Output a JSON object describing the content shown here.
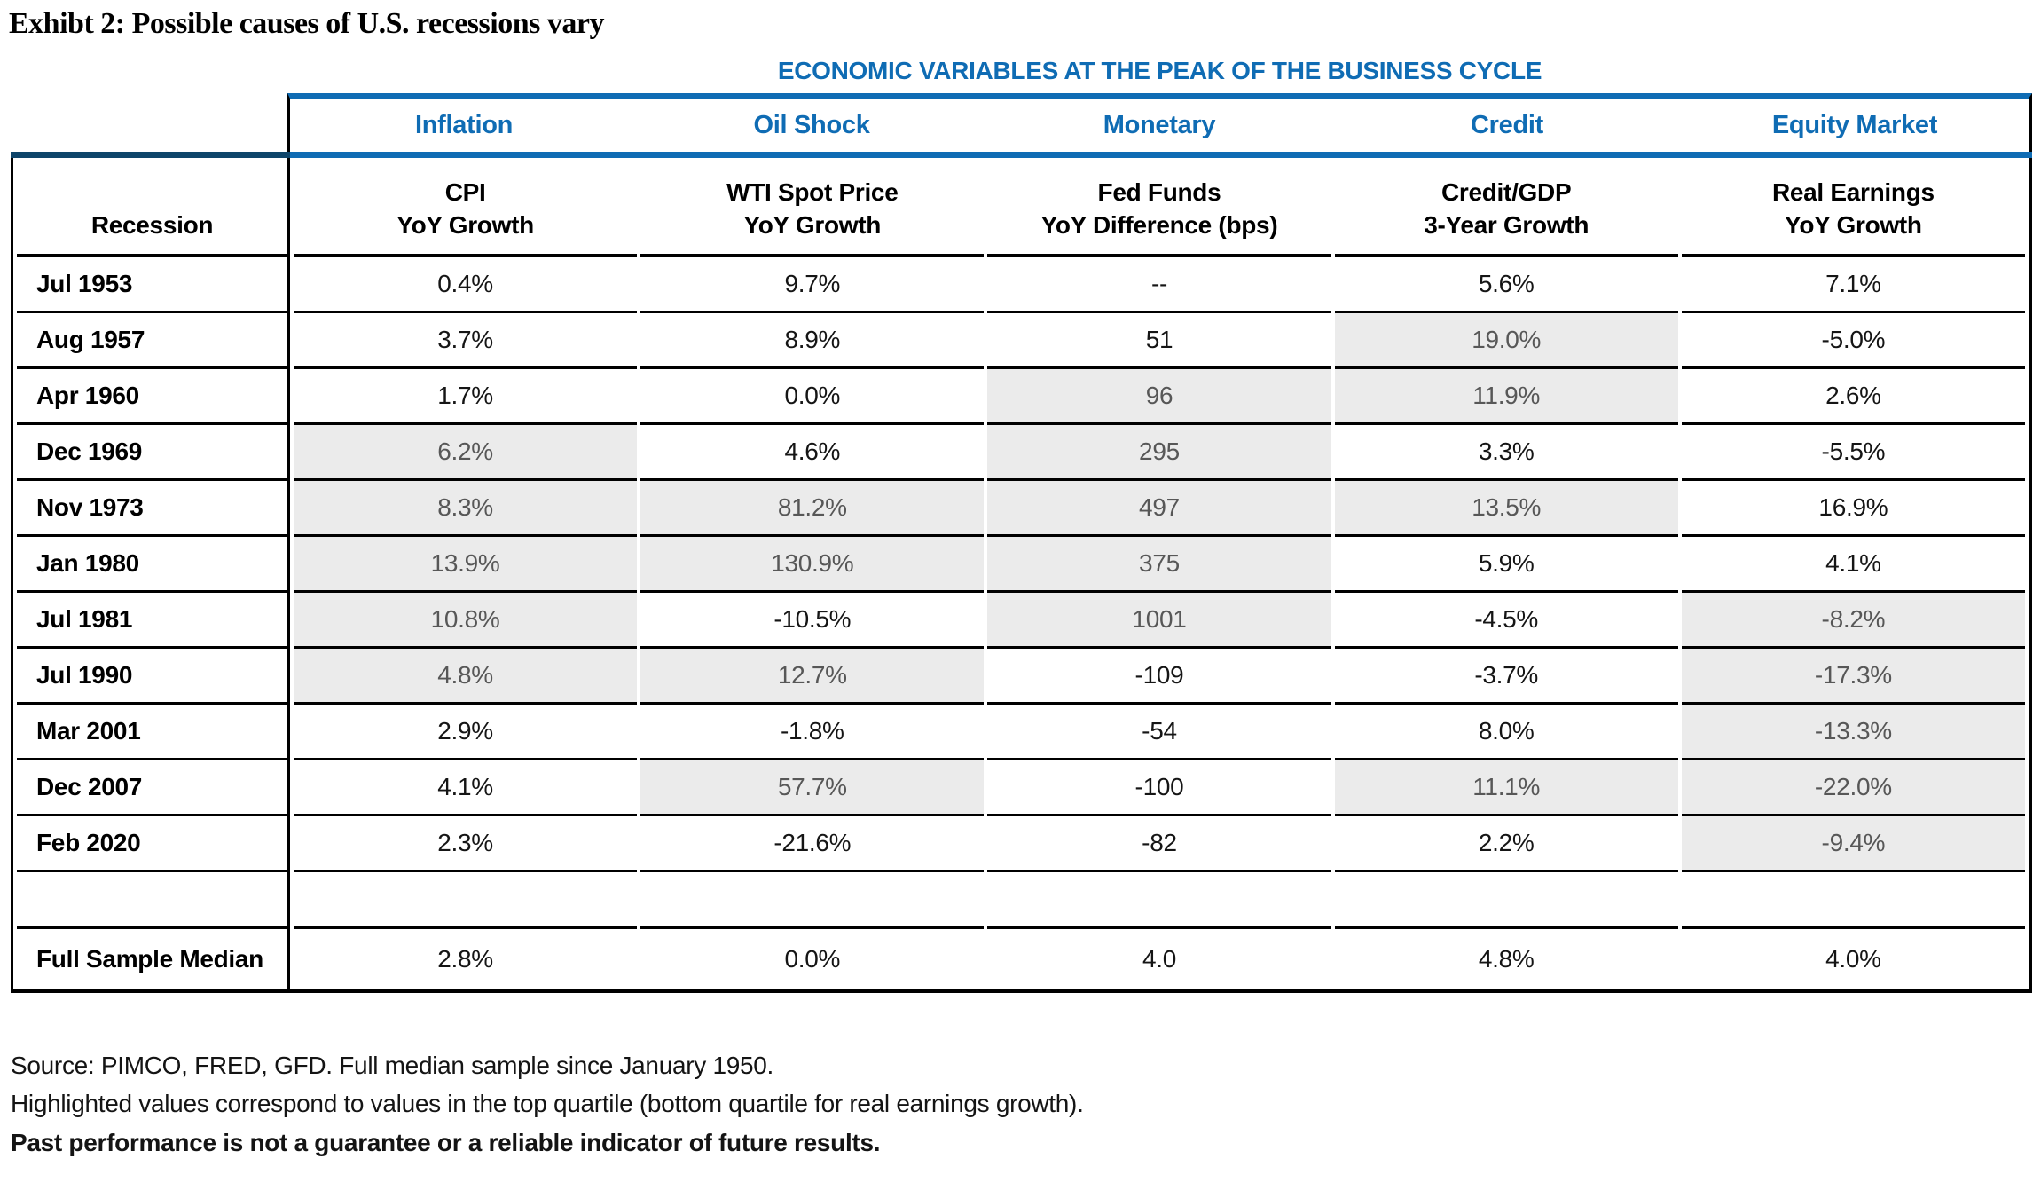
{
  "title": "Exhibt 2: Possible causes of U.S. recessions vary",
  "banner": "ECONOMIC VARIABLES AT THE PEAK OF THE BUSINESS CYCLE",
  "groups": [
    "Inflation",
    "Oil Shock",
    "Monetary",
    "Credit",
    "Equity Market"
  ],
  "row_header": "Recession",
  "col_headers": [
    {
      "line1": "CPI",
      "line2": "YoY Growth"
    },
    {
      "line1": "WTI Spot Price",
      "line2": "YoY Growth"
    },
    {
      "line1": "Fed Funds",
      "line2": "YoY Difference (bps)"
    },
    {
      "line1": "Credit/GDP",
      "line2": "3-Year Growth"
    },
    {
      "line1": "Real Earnings",
      "line2": "YoY Growth"
    }
  ],
  "rows": [
    {
      "label": "Jul 1953",
      "cells": [
        {
          "v": "0.4%",
          "h": false
        },
        {
          "v": "9.7%",
          "h": false
        },
        {
          "v": "--",
          "h": false
        },
        {
          "v": "5.6%",
          "h": false
        },
        {
          "v": "7.1%",
          "h": false
        }
      ]
    },
    {
      "label": "Aug 1957",
      "cells": [
        {
          "v": "3.7%",
          "h": false
        },
        {
          "v": "8.9%",
          "h": false
        },
        {
          "v": "51",
          "h": false
        },
        {
          "v": "19.0%",
          "h": true
        },
        {
          "v": "-5.0%",
          "h": false
        }
      ]
    },
    {
      "label": "Apr 1960",
      "cells": [
        {
          "v": "1.7%",
          "h": false
        },
        {
          "v": "0.0%",
          "h": false
        },
        {
          "v": "96",
          "h": true
        },
        {
          "v": "11.9%",
          "h": true
        },
        {
          "v": "2.6%",
          "h": false
        }
      ]
    },
    {
      "label": "Dec 1969",
      "cells": [
        {
          "v": "6.2%",
          "h": true
        },
        {
          "v": "4.6%",
          "h": false
        },
        {
          "v": "295",
          "h": true
        },
        {
          "v": "3.3%",
          "h": false
        },
        {
          "v": "-5.5%",
          "h": false
        }
      ]
    },
    {
      "label": "Nov 1973",
      "cells": [
        {
          "v": "8.3%",
          "h": true
        },
        {
          "v": "81.2%",
          "h": true
        },
        {
          "v": "497",
          "h": true
        },
        {
          "v": "13.5%",
          "h": true
        },
        {
          "v": "16.9%",
          "h": false
        }
      ]
    },
    {
      "label": "Jan 1980",
      "cells": [
        {
          "v": "13.9%",
          "h": true
        },
        {
          "v": "130.9%",
          "h": true
        },
        {
          "v": "375",
          "h": true
        },
        {
          "v": "5.9%",
          "h": false
        },
        {
          "v": "4.1%",
          "h": false
        }
      ]
    },
    {
      "label": "Jul 1981",
      "cells": [
        {
          "v": "10.8%",
          "h": true
        },
        {
          "v": "-10.5%",
          "h": false
        },
        {
          "v": "1001",
          "h": true
        },
        {
          "v": "-4.5%",
          "h": false
        },
        {
          "v": "-8.2%",
          "h": true
        }
      ]
    },
    {
      "label": "Jul 1990",
      "cells": [
        {
          "v": "4.8%",
          "h": true
        },
        {
          "v": "12.7%",
          "h": true
        },
        {
          "v": "-109",
          "h": false
        },
        {
          "v": "-3.7%",
          "h": false
        },
        {
          "v": "-17.3%",
          "h": true
        }
      ]
    },
    {
      "label": "Mar 2001",
      "cells": [
        {
          "v": "2.9%",
          "h": false
        },
        {
          "v": "-1.8%",
          "h": false
        },
        {
          "v": "-54",
          "h": false
        },
        {
          "v": "8.0%",
          "h": false
        },
        {
          "v": "-13.3%",
          "h": true
        }
      ]
    },
    {
      "label": "Dec 2007",
      "cells": [
        {
          "v": "4.1%",
          "h": false
        },
        {
          "v": "57.7%",
          "h": true
        },
        {
          "v": "-100",
          "h": false
        },
        {
          "v": "11.1%",
          "h": true
        },
        {
          "v": "-22.0%",
          "h": true
        }
      ]
    },
    {
      "label": "Feb 2020",
      "cells": [
        {
          "v": "2.3%",
          "h": false
        },
        {
          "v": "-21.6%",
          "h": false
        },
        {
          "v": "-82",
          "h": false
        },
        {
          "v": "2.2%",
          "h": false
        },
        {
          "v": "-9.4%",
          "h": true
        }
      ]
    },
    {
      "label": "",
      "spacer": true,
      "cells": [
        {
          "v": "",
          "h": false
        },
        {
          "v": "",
          "h": false
        },
        {
          "v": "",
          "h": false
        },
        {
          "v": "",
          "h": false
        },
        {
          "v": "",
          "h": false
        }
      ]
    },
    {
      "label": "Full Sample Median",
      "median": true,
      "cells": [
        {
          "v": "2.8%",
          "h": false
        },
        {
          "v": "0.0%",
          "h": false
        },
        {
          "v": "4.0",
          "h": false
        },
        {
          "v": "4.8%",
          "h": false
        },
        {
          "v": "4.0%",
          "h": false
        }
      ]
    }
  ],
  "footnotes": {
    "source": "Source: PIMCO, FRED, GFD. Full median sample since January 1950.",
    "highlight_note": "Highlighted values correspond to values in the top quartile (bottom quartile for real earnings growth).",
    "disclaimer": "Past performance is not a guarantee or a reliable indicator of future results."
  },
  "colors": {
    "accent_blue": "#0f6cb4",
    "dark_rule": "#0e456a",
    "highlight_bg": "#ebebeb",
    "highlight_text": "#575757"
  }
}
